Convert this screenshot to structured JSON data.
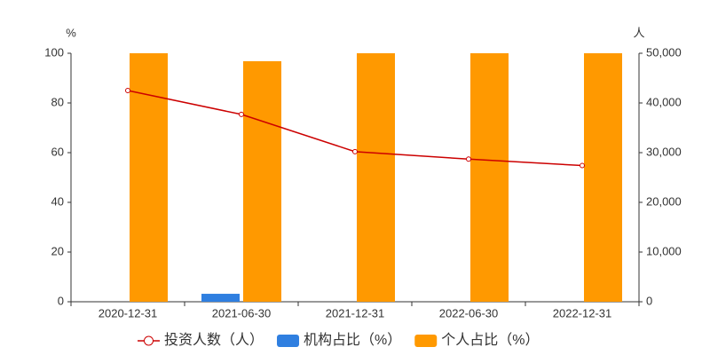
{
  "chart_data": {
    "type": "bar",
    "y_label": "%",
    "y2_label": "人",
    "categories": [
      "2020-12-31",
      "2021-06-30",
      "2021-12-31",
      "2022-06-30",
      "2022-12-31"
    ],
    "series": [
      {
        "name": "投资人数（人）",
        "type": "line",
        "axis": "y2",
        "color": "#cc0000",
        "values": [
          42500,
          37700,
          30200,
          28700,
          27400
        ]
      },
      {
        "name": "机构占比（%）",
        "color": "#2f7fe0",
        "values": [
          0,
          3.2,
          0,
          0,
          0
        ]
      },
      {
        "name": "个人占比（%）",
        "color": "#ff9900",
        "values": [
          100,
          96.8,
          100,
          100,
          100
        ]
      }
    ],
    "ylim": [
      0,
      100
    ],
    "yticks": [
      0,
      20,
      40,
      60,
      80,
      100
    ],
    "y2lim": [
      0,
      50000
    ],
    "y2ticks": [
      0,
      {
        "value": 10000,
        "label": "10,000"
      },
      {
        "value": 20000,
        "label": "20,000"
      },
      {
        "value": 30000,
        "label": "30,000"
      },
      {
        "value": 40000,
        "label": "40,000"
      },
      {
        "value": 50000,
        "label": "50,000"
      }
    ]
  }
}
